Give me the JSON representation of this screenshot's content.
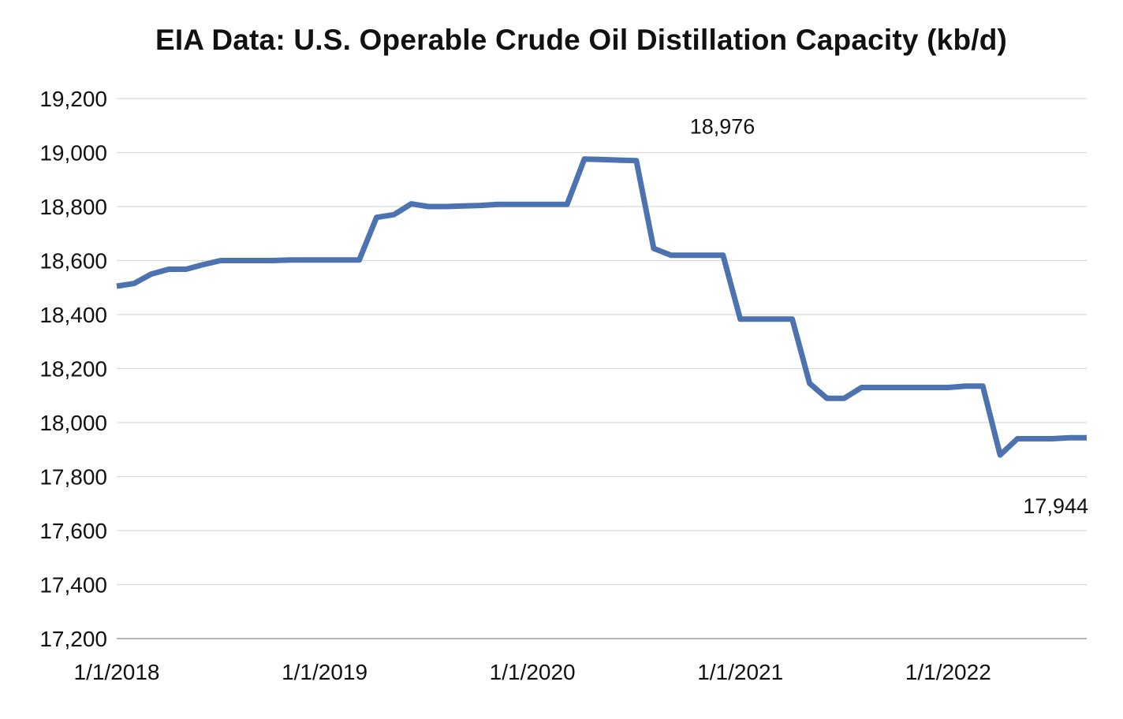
{
  "chart_data": {
    "type": "line",
    "title": "EIA Data: U.S. Operable Crude Oil Distillation Capacity (kb/d)",
    "xlabel": "",
    "ylabel": "",
    "ylim": [
      17200,
      19200
    ],
    "yticks": [
      17200,
      17400,
      17600,
      17800,
      18000,
      18200,
      18400,
      18600,
      18800,
      19000,
      19200
    ],
    "ytick_labels": [
      "17,200",
      "17,400",
      "17,600",
      "17,800",
      "18,000",
      "18,200",
      "18,400",
      "18,600",
      "18,800",
      "19,000",
      "19,200"
    ],
    "x_range_months": [
      0,
      56
    ],
    "xticks_months": [
      0,
      12,
      24,
      36,
      48
    ],
    "xtick_labels": [
      "1/1/2018",
      "1/1/2019",
      "1/1/2020",
      "1/1/2021",
      "1/1/2022"
    ],
    "grid": "horizontal",
    "line_color": "#4c72b0",
    "series": [
      {
        "name": "Operable Crude Oil Distillation Capacity",
        "x_months": [
          0,
          1,
          2,
          3,
          4,
          5,
          6,
          7,
          8,
          9,
          10,
          11,
          12,
          13,
          14,
          15,
          16,
          17,
          18,
          19,
          20,
          21,
          22,
          23,
          24,
          25,
          26,
          27,
          28,
          29,
          30,
          31,
          32,
          33,
          34,
          35,
          36,
          37,
          38,
          39,
          40,
          41,
          42,
          43,
          44,
          45,
          46,
          47,
          48,
          49,
          50,
          51,
          52,
          53,
          54,
          55,
          56
        ],
        "values": [
          18505,
          18515,
          18550,
          18568,
          18568,
          18585,
          18600,
          18600,
          18600,
          18600,
          18602,
          18602,
          18602,
          18602,
          18602,
          18760,
          18770,
          18810,
          18800,
          18800,
          18802,
          18804,
          18808,
          18808,
          18808,
          18808,
          18808,
          18976,
          18974,
          18972,
          18970,
          18645,
          18620,
          18620,
          18620,
          18620,
          18383,
          18383,
          18383,
          18383,
          18145,
          18090,
          18090,
          18130,
          18130,
          18130,
          18130,
          18130,
          18130,
          18135,
          18135,
          17880,
          17940,
          17940,
          17940,
          17944,
          17944
        ]
      }
    ],
    "annotations": [
      {
        "text": "18,976",
        "x_month": 27,
        "value": 18976
      },
      {
        "text": "17,944",
        "x_month": 56,
        "value": 17944
      }
    ]
  }
}
